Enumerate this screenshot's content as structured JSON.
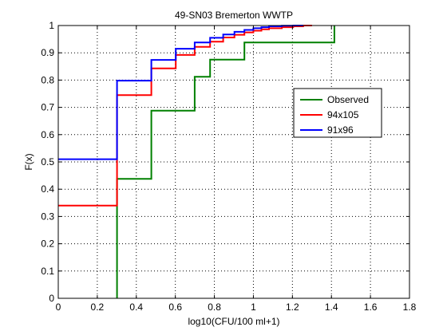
{
  "chart_data": {
    "type": "line",
    "step": true,
    "title": "49-SN03 Bremerton WWTP",
    "xlabel": "log10(CFU/100 ml+1)",
    "ylabel": "F(x)",
    "xlim": [
      0,
      1.8
    ],
    "ylim": [
      0,
      1
    ],
    "xticks": [
      "0",
      "0.2",
      "0.4",
      "0.6",
      "0.8",
      "1",
      "1.2",
      "1.4",
      "1.6",
      "1.8"
    ],
    "yticks": [
      "0",
      "0.1",
      "0.2",
      "0.3",
      "0.4",
      "0.5",
      "0.6",
      "0.7",
      "0.8",
      "0.9",
      "1"
    ],
    "grid": true,
    "legend": "right",
    "series": [
      {
        "name": "Observed",
        "color": "#008000",
        "x": [
          0.301,
          0.301,
          0.477,
          0.477,
          0.699,
          0.699,
          0.778,
          0.778,
          0.954,
          0.954,
          1.415,
          1.415
        ],
        "y": [
          0,
          0.438,
          0.438,
          0.688,
          0.688,
          0.812,
          0.812,
          0.875,
          0.875,
          0.938,
          0.938,
          1.0
        ]
      },
      {
        "name": "94x105",
        "color": "#ff0000",
        "x": [
          0,
          0.301,
          0.301,
          0.477,
          0.477,
          0.602,
          0.602,
          0.699,
          0.699,
          0.778,
          0.778,
          0.845,
          0.845,
          0.903,
          0.903,
          0.954,
          0.954,
          1.0,
          1.0,
          1.041,
          1.041,
          1.08,
          1.08,
          1.146,
          1.146,
          1.204,
          1.204,
          1.255,
          1.255,
          1.3
        ],
        "y": [
          0.34,
          0.34,
          0.745,
          0.745,
          0.843,
          0.843,
          0.892,
          0.892,
          0.922,
          0.922,
          0.941,
          0.941,
          0.956,
          0.956,
          0.966,
          0.966,
          0.975,
          0.975,
          0.981,
          0.981,
          0.986,
          0.986,
          0.99,
          0.99,
          0.994,
          0.994,
          0.997,
          0.997,
          1.0,
          1.0
        ]
      },
      {
        "name": "91x96",
        "color": "#0000ff",
        "x": [
          0,
          0.301,
          0.301,
          0.477,
          0.477,
          0.602,
          0.602,
          0.699,
          0.699,
          0.778,
          0.778,
          0.845,
          0.845,
          0.903,
          0.903,
          0.954,
          0.954,
          1.0,
          1.0,
          1.041,
          1.041,
          1.08,
          1.08,
          1.146,
          1.146,
          1.204,
          1.204,
          1.255
        ],
        "y": [
          0.51,
          0.51,
          0.798,
          0.798,
          0.874,
          0.874,
          0.915,
          0.915,
          0.938,
          0.938,
          0.955,
          0.955,
          0.967,
          0.967,
          0.977,
          0.977,
          0.984,
          0.984,
          0.99,
          0.99,
          0.994,
          0.994,
          0.997,
          0.997,
          0.999,
          0.999,
          1.0,
          1.0
        ]
      }
    ]
  }
}
